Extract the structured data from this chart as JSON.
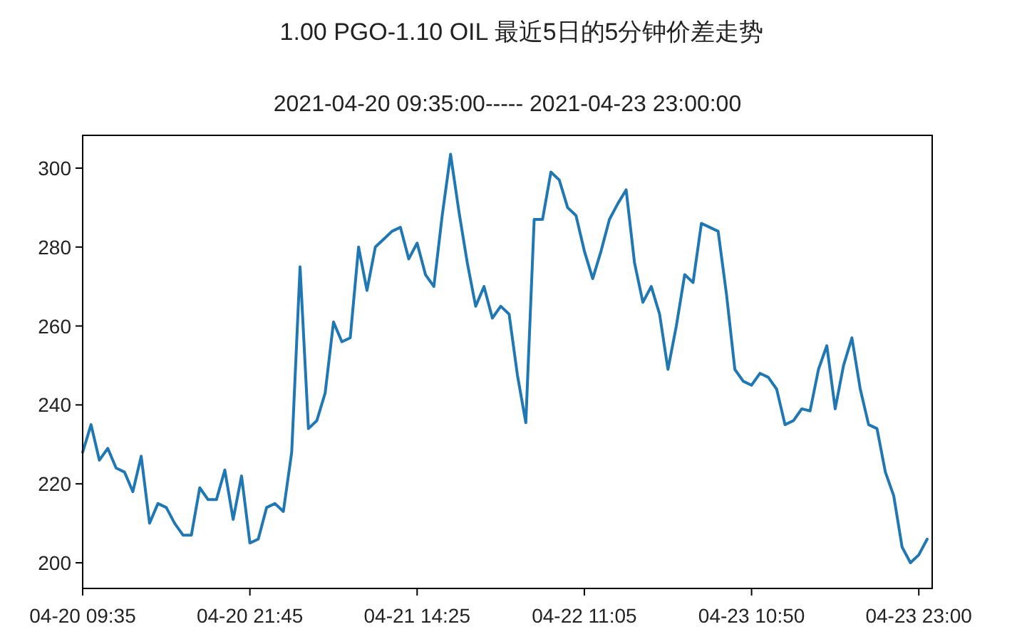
{
  "chart_data": {
    "type": "line",
    "title": "1.00 PGO-1.10 OIL 最近5日的5分钟价差走势",
    "subtitle": "2021-04-20 09:35:00----- 2021-04-23 23:00:00",
    "ylim": [
      193.5,
      308.3
    ],
    "yticks": [
      200,
      220,
      240,
      260,
      280,
      300
    ],
    "grid": false,
    "categories": [
      "04-20 09:35",
      null,
      null,
      null,
      null,
      null,
      null,
      null,
      null,
      null,
      null,
      null,
      null,
      null,
      null,
      null,
      null,
      null,
      null,
      null,
      "04-20 21:45",
      null,
      null,
      null,
      null,
      null,
      null,
      null,
      null,
      null,
      null,
      null,
      null,
      null,
      null,
      null,
      null,
      null,
      null,
      null,
      "04-21 14:25",
      null,
      null,
      null,
      null,
      null,
      null,
      null,
      null,
      null,
      null,
      null,
      null,
      null,
      null,
      null,
      null,
      null,
      null,
      null,
      "04-22 11:05",
      null,
      null,
      null,
      null,
      null,
      null,
      null,
      null,
      null,
      null,
      null,
      null,
      null,
      null,
      null,
      null,
      null,
      null,
      null,
      "04-23 10:50",
      null,
      null,
      null,
      null,
      null,
      null,
      null,
      null,
      null,
      null,
      null,
      null,
      null,
      null,
      null,
      null,
      null,
      null,
      null,
      "04-23 23:00",
      null
    ],
    "series": [
      {
        "color": "#1f77b4",
        "values": [
          228,
          235,
          226,
          229,
          224,
          223,
          218,
          227,
          210,
          215,
          214,
          210,
          207,
          207,
          219,
          216,
          216,
          223.5,
          211,
          222,
          205,
          206,
          214,
          215,
          213,
          228,
          275,
          234,
          236,
          243,
          261,
          256,
          257,
          280,
          269,
          280,
          282,
          284,
          285,
          277,
          281,
          273,
          270,
          288,
          303.5,
          289,
          276,
          265,
          270,
          262,
          265,
          263,
          247.5,
          235.5,
          287,
          287,
          299,
          297,
          290,
          288,
          279,
          272,
          279,
          287,
          291,
          294.5,
          276,
          266,
          270,
          263,
          249,
          260,
          273,
          271,
          286,
          285,
          284,
          268,
          249,
          246,
          245,
          248,
          247,
          244,
          235,
          236,
          239,
          238.5,
          249,
          255,
          239,
          250,
          257,
          244,
          235,
          234,
          223,
          217,
          204,
          200,
          202,
          206
        ]
      }
    ]
  }
}
